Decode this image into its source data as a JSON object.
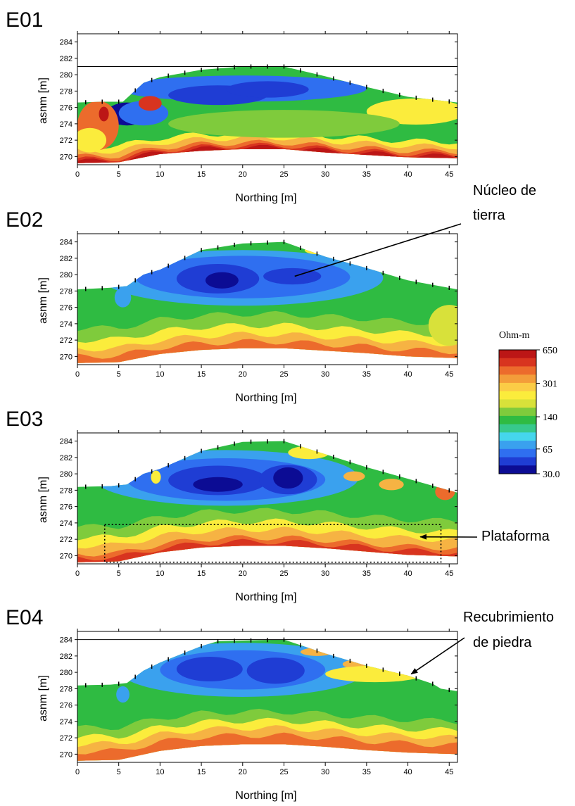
{
  "chart_data": [
    {
      "type": "heatmap",
      "panel_label": "E01",
      "title": "E01",
      "xlabel": "Northing [m]",
      "ylabel": "asnm [m]",
      "xlim": [
        0,
        46
      ],
      "ylim": [
        269,
        285
      ],
      "x_ticks": [
        0,
        5,
        10,
        15,
        20,
        25,
        30,
        35,
        40,
        45
      ],
      "y_ticks": [
        270,
        272,
        274,
        276,
        278,
        280,
        282,
        284
      ],
      "reference_line": 281,
      "surface": [
        [
          0,
          276.6
        ],
        [
          3,
          276.7
        ],
        [
          5.5,
          276.7
        ],
        [
          8,
          279.0
        ],
        [
          10,
          279.7
        ],
        [
          15,
          280.6
        ],
        [
          20,
          281.0
        ],
        [
          25,
          281.0
        ],
        [
          30,
          279.8
        ],
        [
          35,
          278.5
        ],
        [
          40,
          277.3
        ],
        [
          46,
          276.6
        ]
      ],
      "bottom": [
        [
          0,
          269.2
        ],
        [
          5,
          269.3
        ],
        [
          10,
          270.3
        ],
        [
          15,
          270.7
        ],
        [
          20,
          270.9
        ],
        [
          25,
          270.9
        ],
        [
          30,
          270.5
        ],
        [
          35,
          270.2
        ],
        [
          40,
          269.9
        ],
        [
          46,
          269.8
        ]
      ],
      "regions": [
        {
          "zone": "fill",
          "class": 140
        },
        {
          "zone": "low",
          "class": 65,
          "x": 20,
          "y": 278.3,
          "rx": 15,
          "ry": 1.6
        },
        {
          "zone": "low",
          "class": 45,
          "x": 17,
          "y": 277.5,
          "rx": 6,
          "ry": 1.2
        },
        {
          "zone": "low",
          "class": 45,
          "x": 23,
          "y": 278.2,
          "rx": 5,
          "ry": 1.0
        },
        {
          "zone": "low",
          "class": 30,
          "x": 6,
          "y": 275.2,
          "rx": 2.5,
          "ry": 1.4
        },
        {
          "zone": "low",
          "class": 65,
          "x": 8,
          "y": 275.3,
          "rx": 3,
          "ry": 1.5
        },
        {
          "zone": "high",
          "class": 400,
          "x": 2.5,
          "y": 273.8,
          "rx": 2.5,
          "ry": 3
        },
        {
          "zone": "high",
          "class": 650,
          "x": 3.2,
          "y": 275.2,
          "rx": 0.6,
          "ry": 0.9
        },
        {
          "zone": "high",
          "class": 500,
          "x": 8.8,
          "y": 276.5,
          "rx": 1.4,
          "ry": 0.9
        },
        {
          "zone": "high",
          "class": 220,
          "x": 41,
          "y": 275.5,
          "rx": 6,
          "ry": 1.6
        },
        {
          "zone": "high",
          "class": 220,
          "x": 1.5,
          "y": 272,
          "rx": 2,
          "ry": 1.5
        },
        {
          "zone": "high",
          "class": 160,
          "x": 25,
          "y": 274,
          "rx": 14,
          "ry": 1.7
        }
      ],
      "layers": [
        {
          "class": 220,
          "offset": 2.0
        },
        {
          "class": 301,
          "offset": 1.4
        },
        {
          "class": 400,
          "offset": 0.8
        },
        {
          "class": 500,
          "offset": 0.45
        },
        {
          "class": 650,
          "offset": 0.2
        }
      ]
    },
    {
      "type": "heatmap",
      "panel_label": "E02",
      "title": "E02",
      "xlabel": "Northing [m]",
      "ylabel": "asnm [m]",
      "xlim": [
        0,
        46
      ],
      "ylim": [
        269,
        285
      ],
      "x_ticks": [
        0,
        5,
        10,
        15,
        20,
        25,
        30,
        35,
        40,
        45
      ],
      "y_ticks": [
        270,
        272,
        274,
        276,
        278,
        280,
        282,
        284
      ],
      "surface": [
        [
          0,
          278.2
        ],
        [
          4,
          278.4
        ],
        [
          6,
          278.6
        ],
        [
          8,
          280.0
        ],
        [
          10,
          280.6
        ],
        [
          15,
          283.0
        ],
        [
          20,
          283.8
        ],
        [
          25,
          284.0
        ],
        [
          30,
          282.2
        ],
        [
          35,
          280.8
        ],
        [
          40,
          279.3
        ],
        [
          46,
          278.2
        ]
      ],
      "bottom": [
        [
          0,
          269.2
        ],
        [
          5,
          269.3
        ],
        [
          10,
          270.3
        ],
        [
          15,
          270.8
        ],
        [
          20,
          271.0
        ],
        [
          25,
          271.0
        ],
        [
          30,
          270.7
        ],
        [
          35,
          270.4
        ],
        [
          40,
          270.0
        ],
        [
          46,
          269.8
        ]
      ],
      "regions": [
        {
          "zone": "fill",
          "class": 140
        },
        {
          "zone": "low",
          "class": 90,
          "x": 20,
          "y": 279.6,
          "rx": 17,
          "ry": 3.4
        },
        {
          "zone": "low",
          "class": 65,
          "x": 20,
          "y": 279.7,
          "rx": 13,
          "ry": 2.6
        },
        {
          "zone": "low",
          "class": 45,
          "x": 17,
          "y": 279.5,
          "rx": 5,
          "ry": 1.8
        },
        {
          "zone": "low",
          "class": 45,
          "x": 26,
          "y": 279.8,
          "rx": 3.5,
          "ry": 1.0
        },
        {
          "zone": "low",
          "class": 30,
          "x": 17.5,
          "y": 279.3,
          "rx": 2,
          "ry": 1.0
        },
        {
          "zone": "low",
          "class": 90,
          "x": 5.5,
          "y": 277.2,
          "rx": 1,
          "ry": 1.2
        },
        {
          "zone": "high",
          "class": 180,
          "x": 45,
          "y": 273.8,
          "rx": 2.5,
          "ry": 2.5
        },
        {
          "zone": "high",
          "class": 220,
          "x": 29,
          "y": 283,
          "rx": 1.5,
          "ry": 0.5
        }
      ],
      "layers": [
        {
          "class": 160,
          "offset": 4.2
        },
        {
          "class": 220,
          "offset": 2.8
        },
        {
          "class": 301,
          "offset": 1.7
        },
        {
          "class": 400,
          "offset": 0.8
        }
      ]
    },
    {
      "type": "heatmap",
      "panel_label": "E03",
      "title": "E03",
      "xlabel": "Northing [m]",
      "ylabel": "asnm [m]",
      "xlim": [
        0,
        46
      ],
      "ylim": [
        269,
        285
      ],
      "x_ticks": [
        0,
        5,
        10,
        15,
        20,
        25,
        30,
        35,
        40,
        45
      ],
      "y_ticks": [
        270,
        272,
        274,
        276,
        278,
        280,
        282,
        284
      ],
      "surface": [
        [
          0,
          278.4
        ],
        [
          4,
          278.5
        ],
        [
          6,
          278.7
        ],
        [
          8,
          280.0
        ],
        [
          10,
          280.6
        ],
        [
          15,
          282.8
        ],
        [
          20,
          283.9
        ],
        [
          25,
          284.0
        ],
        [
          30,
          282.4
        ],
        [
          35,
          280.8
        ],
        [
          40,
          279.4
        ],
        [
          46,
          277.7
        ]
      ],
      "bottom": [
        [
          0,
          269.2
        ],
        [
          5,
          269.3
        ],
        [
          10,
          270.4
        ],
        [
          15,
          271.0
        ],
        [
          20,
          271.2
        ],
        [
          25,
          271.2
        ],
        [
          30,
          270.9
        ],
        [
          35,
          270.5
        ],
        [
          40,
          270.1
        ],
        [
          46,
          269.9
        ]
      ],
      "regions": [
        {
          "zone": "fill",
          "class": 140
        },
        {
          "zone": "low",
          "class": 90,
          "x": 18,
          "y": 279.5,
          "rx": 16,
          "ry": 3.4
        },
        {
          "zone": "low",
          "class": 65,
          "x": 18,
          "y": 279.3,
          "rx": 12,
          "ry": 2.6
        },
        {
          "zone": "low",
          "class": 45,
          "x": 17,
          "y": 279.2,
          "rx": 6,
          "ry": 1.8
        },
        {
          "zone": "low",
          "class": 45,
          "x": 25.5,
          "y": 279.3,
          "rx": 3.5,
          "ry": 1.8
        },
        {
          "zone": "low",
          "class": 30,
          "x": 25.5,
          "y": 279.5,
          "rx": 1.8,
          "ry": 1.3
        },
        {
          "zone": "low",
          "class": 30,
          "x": 17,
          "y": 278.7,
          "rx": 3,
          "ry": 0.9
        },
        {
          "zone": "high",
          "class": 400,
          "x": 44.5,
          "y": 277.8,
          "rx": 1.2,
          "ry": 1.0
        },
        {
          "zone": "high",
          "class": 301,
          "x": 38,
          "y": 278.7,
          "rx": 1.5,
          "ry": 0.7
        },
        {
          "zone": "high",
          "class": 301,
          "x": 33.5,
          "y": 279.7,
          "rx": 1.3,
          "ry": 0.6
        },
        {
          "zone": "high",
          "class": 220,
          "x": 28,
          "y": 282.6,
          "rx": 2.5,
          "ry": 0.8
        },
        {
          "zone": "high",
          "class": 220,
          "x": 9.5,
          "y": 279.6,
          "rx": 0.6,
          "ry": 0.8
        }
      ],
      "layers": [
        {
          "class": 160,
          "offset": 4.3
        },
        {
          "class": 220,
          "offset": 3.0
        },
        {
          "class": 301,
          "offset": 2.0
        },
        {
          "class": 400,
          "offset": 1.0
        },
        {
          "class": 500,
          "offset": 0.5
        }
      ],
      "outline_box": {
        "x": [
          3.3,
          44
        ],
        "y": [
          269.2,
          273.8
        ]
      }
    },
    {
      "type": "heatmap",
      "panel_label": "E04",
      "title": "E04",
      "xlabel": "Northing [m]",
      "ylabel": "asnm [m]",
      "xlim": [
        0,
        46
      ],
      "ylim": [
        269,
        285
      ],
      "x_ticks": [
        0,
        5,
        10,
        15,
        20,
        25,
        30,
        35,
        40,
        45
      ],
      "y_ticks": [
        270,
        272,
        274,
        276,
        278,
        280,
        282,
        284
      ],
      "reference_line": 284,
      "surface": [
        [
          0,
          278.4
        ],
        [
          4,
          278.5
        ],
        [
          6,
          278.7
        ],
        [
          8,
          280.2
        ],
        [
          10,
          281.2
        ],
        [
          15,
          283.2
        ],
        [
          17,
          283.8
        ],
        [
          25,
          284.0
        ],
        [
          30,
          282.3
        ],
        [
          35,
          280.8
        ],
        [
          40,
          279.6
        ],
        [
          43,
          278.6
        ],
        [
          44,
          278.0
        ],
        [
          46,
          277.7
        ]
      ],
      "bottom": [
        [
          0,
          269.2
        ],
        [
          5,
          269.3
        ],
        [
          10,
          270.4
        ],
        [
          15,
          271.0
        ],
        [
          20,
          271.2
        ],
        [
          25,
          271.2
        ],
        [
          30,
          270.9
        ],
        [
          35,
          270.5
        ],
        [
          40,
          270.2
        ],
        [
          46,
          270.0
        ]
      ],
      "regions": [
        {
          "zone": "fill",
          "class": 140
        },
        {
          "zone": "low",
          "class": 90,
          "x": 20,
          "y": 280.3,
          "rx": 15,
          "ry": 3.3
        },
        {
          "zone": "low",
          "class": 65,
          "x": 20,
          "y": 280.3,
          "rx": 10,
          "ry": 2.4
        },
        {
          "zone": "low",
          "class": 45,
          "x": 16,
          "y": 280.4,
          "rx": 4,
          "ry": 1.5
        },
        {
          "zone": "low",
          "class": 45,
          "x": 24,
          "y": 280.2,
          "rx": 3.5,
          "ry": 1.6
        },
        {
          "zone": "low",
          "class": 90,
          "x": 5.5,
          "y": 277.3,
          "rx": 0.8,
          "ry": 1.0
        },
        {
          "zone": "high",
          "class": 301,
          "x": 38.5,
          "y": 279.6,
          "rx": 2,
          "ry": 0.7
        },
        {
          "zone": "high",
          "class": 400,
          "x": 38,
          "y": 279.4,
          "rx": 1,
          "ry": 0.5
        },
        {
          "zone": "high",
          "class": 301,
          "x": 29,
          "y": 282.5,
          "rx": 2,
          "ry": 0.5
        },
        {
          "zone": "high",
          "class": 301,
          "x": 33.5,
          "y": 281.0,
          "rx": 1.4,
          "ry": 0.5
        },
        {
          "zone": "high",
          "class": 220,
          "x": 36,
          "y": 279.8,
          "rx": 6,
          "ry": 1.0
        }
      ],
      "layers": [
        {
          "class": 160,
          "offset": 4.0
        },
        {
          "class": 220,
          "offset": 2.9
        },
        {
          "class": 301,
          "offset": 2.0
        },
        {
          "class": 400,
          "offset": 1.1
        }
      ]
    }
  ],
  "colorbar": {
    "title": "Ohm-m",
    "tick_labels": [
      "650",
      "301",
      "140",
      "65",
      "30.0"
    ],
    "tick_values": [
      650,
      301,
      140,
      65,
      30
    ],
    "colors": [
      "#0c0c94",
      "#1f3dd4",
      "#2f6ff0",
      "#3aa1ee",
      "#45d6ec",
      "#37c98c",
      "#2fbb42",
      "#7fcb3c",
      "#d8e13a",
      "#fbec3c",
      "#fbcc46",
      "#f39d3a",
      "#ec6b2c",
      "#d8341f",
      "#bc1616"
    ],
    "class_colors": {
      "30": "#0c0c94",
      "45": "#1f3dd4",
      "65": "#2f6ff0",
      "90": "#3aa1ee",
      "110": "#45d6ec",
      "120": "#37c98c",
      "140": "#2fbb42",
      "160": "#7fcb3c",
      "180": "#d8e13a",
      "220": "#fbec3c",
      "301": "#f6b343",
      "400": "#ec6b2c",
      "500": "#d8341f",
      "650": "#bc1616"
    }
  },
  "annotations": [
    {
      "id": "nucleo",
      "lines": [
        "Núcleo de",
        "tierra"
      ],
      "target_panel": 1,
      "target": [
        26.3,
        279.8
      ]
    },
    {
      "id": "plataforma",
      "lines": [
        "Plataforma"
      ],
      "target_panel": 2,
      "target": [
        41.5,
        272.3
      ]
    },
    {
      "id": "recubrimiento",
      "lines": [
        "Recubrimiento",
        "de piedra"
      ],
      "target_panel": 3,
      "target": [
        40.4,
        279.8
      ]
    }
  ]
}
